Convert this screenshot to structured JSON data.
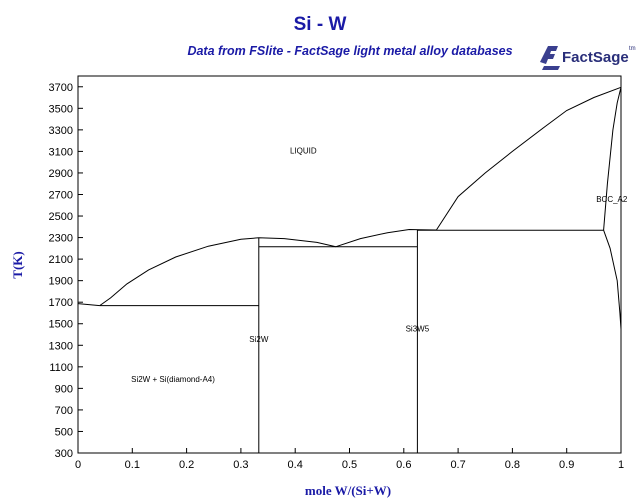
{
  "title": "Si - W",
  "subtitle": "Data from FSlite - FactSage light metal alloy databases",
  "logo": {
    "text": "FactSage",
    "mark": "tm"
  },
  "colors": {
    "title": "#1a1aa6",
    "line": "#000000"
  },
  "chart_data": {
    "type": "line",
    "title": "Si - W",
    "xlabel": "mole W/(Si+W)",
    "ylabel": "T(K)",
    "xlim": [
      0,
      1
    ],
    "ylim": [
      300,
      3800
    ],
    "grid": false,
    "x_ticks": [
      "0",
      "0.1",
      "0.2",
      "0.3",
      "0.4",
      "0.5",
      "0.6",
      "0.7",
      "0.8",
      "0.9",
      "1"
    ],
    "y_ticks": [
      "300",
      "500",
      "700",
      "900",
      "1100",
      "1300",
      "1500",
      "1700",
      "1900",
      "2100",
      "2300",
      "2500",
      "2700",
      "2900",
      "3100",
      "3300",
      "3500",
      "3700"
    ],
    "series": [
      {
        "points": [
          [
            0,
            1687
          ],
          [
            0.02,
            1678
          ],
          [
            0.04,
            1668
          ]
        ]
      },
      {
        "points": [
          [
            0.04,
            1668
          ],
          [
            0.06,
            1740
          ],
          [
            0.09,
            1870
          ],
          [
            0.13,
            2000
          ],
          [
            0.18,
            2120
          ],
          [
            0.24,
            2220
          ],
          [
            0.3,
            2285
          ],
          [
            0.333,
            2298
          ],
          [
            0.38,
            2290
          ],
          [
            0.44,
            2255
          ],
          [
            0.475,
            2215
          ]
        ]
      },
      {
        "points": [
          [
            0.475,
            2215
          ],
          [
            0.52,
            2290
          ],
          [
            0.57,
            2345
          ],
          [
            0.61,
            2375
          ],
          [
            0.63,
            2373
          ],
          [
            0.66,
            2370
          ]
        ]
      },
      {
        "points": [
          [
            0.66,
            2370
          ],
          [
            0.7,
            2680
          ],
          [
            0.75,
            2900
          ],
          [
            0.8,
            3100
          ],
          [
            0.86,
            3330
          ],
          [
            0.9,
            3480
          ],
          [
            0.95,
            3600
          ],
          [
            1.0,
            3695
          ]
        ]
      },
      {
        "points": [
          [
            0.968,
            2368
          ],
          [
            0.975,
            2800
          ],
          [
            0.985,
            3300
          ],
          [
            0.993,
            3550
          ],
          [
            1.0,
            3695
          ]
        ]
      },
      {
        "points": [
          [
            0.968,
            2368
          ],
          [
            0.98,
            2200
          ],
          [
            0.993,
            1900
          ],
          [
            0.998,
            1600
          ],
          [
            1.0,
            1450
          ]
        ]
      },
      {
        "points": [
          [
            0.04,
            1668
          ],
          [
            0.333,
            1668
          ]
        ]
      },
      {
        "points": [
          [
            0.333,
            2215
          ],
          [
            0.625,
            2215
          ]
        ]
      },
      {
        "points": [
          [
            0.625,
            2368
          ],
          [
            0.968,
            2368
          ]
        ]
      },
      {
        "points": [
          [
            0.333,
            300
          ],
          [
            0.333,
            2298
          ]
        ]
      },
      {
        "points": [
          [
            0.625,
            300
          ],
          [
            0.625,
            2373
          ]
        ]
      }
    ],
    "annotations": [
      {
        "text": "LIQUID",
        "x": 0.415,
        "y": 3080
      },
      {
        "text": "BCC_A2",
        "x": 0.983,
        "y": 2630
      },
      {
        "text": "Si2W",
        "x": 0.333,
        "y": 1330
      },
      {
        "text": "Si3W5",
        "x": 0.625,
        "y": 1430
      },
      {
        "text": "Si2W + Si(diamond-A4)",
        "x": 0.175,
        "y": 960
      }
    ]
  }
}
